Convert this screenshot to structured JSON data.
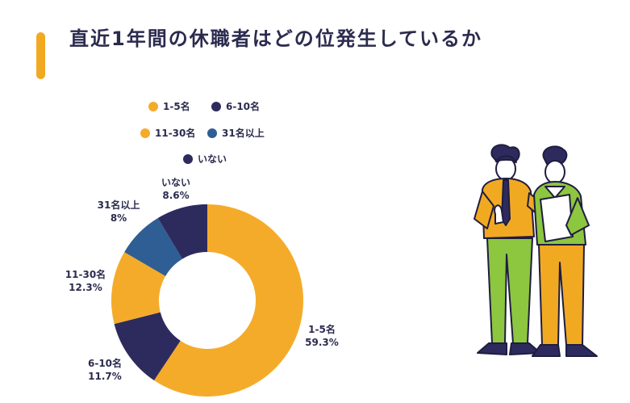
{
  "title": "直近1年間の休職者はどの位発生しているか",
  "colors": {
    "accent": "#f2a922",
    "c1": "#f5ab2a",
    "c2": "#2d2b5e",
    "c3": "#f5ab2a",
    "c4": "#2e5e93",
    "c5": "#2d2b5e"
  },
  "chart_data": {
    "type": "pie",
    "donut": true,
    "legend_position": "top",
    "slices": [
      {
        "name": "1-5名",
        "value": 59.3,
        "label": "59.3%",
        "color": "#f5ab2a"
      },
      {
        "name": "6-10名",
        "value": 11.7,
        "label": "11.7%",
        "color": "#2d2b5e"
      },
      {
        "name": "11-30名",
        "value": 12.3,
        "label": "12.3%",
        "color": "#f5ab2a"
      },
      {
        "name": "31名以上",
        "value": 8.0,
        "label": "8%",
        "color": "#2e5e93"
      },
      {
        "name": "いない",
        "value": 8.6,
        "label": "8.6%",
        "color": "#2d2b5e"
      }
    ]
  },
  "illustration": {
    "subject": "two-people-illustration"
  }
}
